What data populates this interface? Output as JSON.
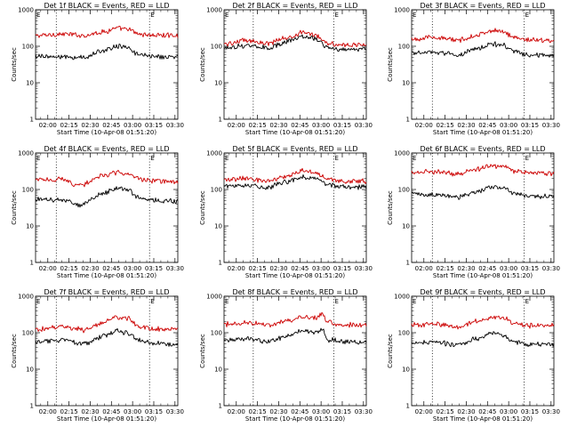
{
  "chart_data": [
    {
      "type": "line",
      "title": "Det 1f BLACK = Events, RED = LLD",
      "xlabel": "Start Time (10-Apr-08 01:51:20)",
      "ylabel": "Counts/sec",
      "x_ticks": [
        "02:00",
        "02:15",
        "02:30",
        "02:45",
        "03:00",
        "03:15",
        "03:30"
      ],
      "xlim": [
        "01:51:20",
        "03:32:00"
      ],
      "y_scale": "log",
      "ylim": [
        1,
        1000
      ],
      "y_ticks": [
        "1",
        "10",
        "100",
        "1000"
      ],
      "markers": [
        "02:06",
        "03:12"
      ],
      "flag_label": "E",
      "series": [
        {
          "color": "#cc0000",
          "x": [
            "01:51",
            "02:10",
            "02:25",
            "02:40",
            "02:48",
            "02:56",
            "03:05",
            "03:15",
            "03:30"
          ],
          "values": [
            195,
            215,
            200,
            250,
            310,
            290,
            215,
            200,
            200
          ]
        },
        {
          "color": "#000000",
          "x": [
            "01:51",
            "02:10",
            "02:25",
            "02:40",
            "02:48",
            "02:56",
            "03:05",
            "03:15",
            "03:30"
          ],
          "values": [
            55,
            50,
            50,
            75,
            100,
            95,
            57,
            52,
            50
          ]
        }
      ]
    },
    {
      "type": "line",
      "title": "Det 2f BLACK = Events, RED = LLD",
      "xlabel": "Start Time (10-Apr-08 01:51:20)",
      "ylabel": "Counts/sec",
      "x_ticks": [
        "02:00",
        "02:15",
        "02:30",
        "02:45",
        "03:00",
        "03:15",
        "03:30"
      ],
      "xlim": [
        "01:51:20",
        "03:32:00"
      ],
      "y_scale": "log",
      "ylim": [
        1,
        1000
      ],
      "y_ticks": [
        "1",
        "10",
        "100",
        "1000"
      ],
      "markers": [
        "02:12",
        "03:09"
      ],
      "flag_label": "E",
      "series": [
        {
          "color": "#cc0000",
          "x": [
            "01:51",
            "02:07",
            "02:22",
            "02:37",
            "02:47",
            "02:55",
            "03:05",
            "03:15",
            "03:30"
          ],
          "values": [
            115,
            145,
            120,
            175,
            235,
            215,
            125,
            105,
            110
          ]
        },
        {
          "color": "#000000",
          "x": [
            "01:51",
            "02:07",
            "02:22",
            "02:37",
            "02:47",
            "02:55",
            "03:05",
            "03:15",
            "03:30"
          ],
          "values": [
            90,
            105,
            90,
            135,
            180,
            165,
            95,
            82,
            85
          ]
        }
      ]
    },
    {
      "type": "line",
      "title": "Det 3f BLACK = Events, RED = LLD",
      "xlabel": "Start Time (10-Apr-08 01:51:20)",
      "ylabel": "Counts/sec",
      "x_ticks": [
        "02:00",
        "02:15",
        "02:30",
        "02:45",
        "03:00",
        "03:15",
        "03:30"
      ],
      "xlim": [
        "01:51:20",
        "03:32:00"
      ],
      "y_scale": "log",
      "ylim": [
        1,
        1000
      ],
      "y_ticks": [
        "1",
        "10",
        "100",
        "1000"
      ],
      "markers": [
        "02:06",
        "03:11"
      ],
      "flag_label": "E",
      "series": [
        {
          "color": "#cc0000",
          "x": [
            "01:51",
            "02:08",
            "02:24",
            "02:38",
            "02:48",
            "02:56",
            "03:05",
            "03:15",
            "03:30"
          ],
          "values": [
            160,
            175,
            145,
            205,
            265,
            245,
            175,
            150,
            145
          ]
        },
        {
          "color": "#000000",
          "x": [
            "01:51",
            "02:08",
            "02:24",
            "02:38",
            "02:48",
            "02:56",
            "03:05",
            "03:15",
            "03:30"
          ],
          "values": [
            65,
            68,
            58,
            85,
            115,
            105,
            68,
            58,
            55
          ]
        }
      ]
    },
    {
      "type": "line",
      "title": "Det 4f BLACK = Events, RED = LLD",
      "xlabel": "Start Time (10-Apr-08 01:51:20)",
      "ylabel": "Counts/sec",
      "x_ticks": [
        "02:00",
        "02:15",
        "02:30",
        "02:45",
        "03:00",
        "03:15",
        "03:30"
      ],
      "xlim": [
        "01:51:20",
        "03:32:00"
      ],
      "y_scale": "log",
      "ylim": [
        1,
        1000
      ],
      "y_ticks": [
        "1",
        "10",
        "100",
        "1000"
      ],
      "markers": [
        "02:06",
        "03:12"
      ],
      "flag_label": "E",
      "series": [
        {
          "color": "#cc0000",
          "x": [
            "01:51",
            "02:10",
            "02:22",
            "02:40",
            "02:48",
            "02:56",
            "03:05",
            "03:15",
            "03:30"
          ],
          "values": [
            185,
            190,
            130,
            240,
            290,
            265,
            195,
            170,
            160
          ]
        },
        {
          "color": "#000000",
          "x": [
            "01:51",
            "02:10",
            "02:22",
            "02:40",
            "02:48",
            "02:56",
            "03:05",
            "03:15",
            "03:30"
          ],
          "values": [
            55,
            50,
            38,
            80,
            110,
            100,
            58,
            50,
            48
          ]
        }
      ]
    },
    {
      "type": "line",
      "title": "Det 5f BLACK = Events, RED = LLD",
      "xlabel": "Start Time (10-Apr-08 01:51:20)",
      "ylabel": "Counts/sec",
      "x_ticks": [
        "02:00",
        "02:15",
        "02:30",
        "02:45",
        "03:00",
        "03:15",
        "03:30"
      ],
      "xlim": [
        "01:51:20",
        "03:32:00"
      ],
      "y_scale": "log",
      "ylim": [
        1,
        1000
      ],
      "y_ticks": [
        "1",
        "10",
        "100",
        "1000"
      ],
      "markers": [
        "02:12",
        "03:09"
      ],
      "flag_label": "E",
      "series": [
        {
          "color": "#cc0000",
          "x": [
            "01:51",
            "02:07",
            "02:22",
            "02:37",
            "02:47",
            "02:55",
            "03:05",
            "03:15",
            "03:30"
          ],
          "values": [
            185,
            200,
            170,
            240,
            330,
            300,
            195,
            170,
            170
          ]
        },
        {
          "color": "#000000",
          "x": [
            "01:51",
            "02:07",
            "02:22",
            "02:37",
            "02:47",
            "02:55",
            "03:05",
            "03:15",
            "03:30"
          ],
          "values": [
            125,
            135,
            115,
            165,
            225,
            205,
            135,
            115,
            115
          ]
        }
      ]
    },
    {
      "type": "line",
      "title": "Det 6f BLACK = Events, RED = LLD",
      "xlabel": "Start Time (10-Apr-08 01:51:20)",
      "ylabel": "Counts/sec",
      "x_ticks": [
        "02:00",
        "02:15",
        "02:30",
        "02:45",
        "03:00",
        "03:15",
        "03:30"
      ],
      "xlim": [
        "01:51:20",
        "03:32:00"
      ],
      "y_scale": "log",
      "ylim": [
        1,
        1000
      ],
      "y_ticks": [
        "1",
        "10",
        "100",
        "1000"
      ],
      "markers": [
        "02:06",
        "03:11"
      ],
      "flag_label": "E",
      "series": [
        {
          "color": "#cc0000",
          "x": [
            "01:51",
            "02:08",
            "02:24",
            "02:38",
            "02:48",
            "02:56",
            "03:05",
            "03:15",
            "03:30"
          ],
          "values": [
            300,
            310,
            265,
            360,
            450,
            420,
            320,
            280,
            280
          ]
        },
        {
          "color": "#000000",
          "x": [
            "01:51",
            "02:08",
            "02:24",
            "02:38",
            "02:48",
            "02:56",
            "03:05",
            "03:15",
            "03:30"
          ],
          "values": [
            75,
            72,
            62,
            90,
            120,
            110,
            75,
            65,
            65
          ]
        }
      ]
    },
    {
      "type": "line",
      "title": "Det 7f BLACK = Events, RED = LLD",
      "xlabel": "Start Time (10-Apr-08 01:51:20)",
      "ylabel": "Counts/sec",
      "x_ticks": [
        "02:00",
        "02:15",
        "02:30",
        "02:45",
        "03:00",
        "03:15",
        "03:30"
      ],
      "xlim": [
        "01:51:20",
        "03:32:00"
      ],
      "y_scale": "log",
      "ylim": [
        1,
        1000
      ],
      "y_ticks": [
        "1",
        "10",
        "100",
        "1000"
      ],
      "markers": [
        "02:06",
        "03:12"
      ],
      "flag_label": "E",
      "series": [
        {
          "color": "#cc0000",
          "x": [
            "01:51",
            "02:10",
            "02:25",
            "02:40",
            "02:48",
            "02:56",
            "03:05",
            "03:15",
            "03:30"
          ],
          "values": [
            125,
            150,
            120,
            190,
            270,
            245,
            150,
            125,
            120
          ]
        },
        {
          "color": "#000000",
          "x": [
            "01:51",
            "02:10",
            "02:25",
            "02:40",
            "02:48",
            "02:56",
            "03:05",
            "03:15",
            "03:30"
          ],
          "values": [
            58,
            62,
            50,
            80,
            110,
            100,
            60,
            50,
            48
          ]
        }
      ]
    },
    {
      "type": "line",
      "title": "Det 8f BLACK = Events, RED = LLD",
      "xlabel": "Start Time (10-Apr-08 01:51:20)",
      "ylabel": "Counts/sec",
      "x_ticks": [
        "02:00",
        "02:15",
        "02:30",
        "02:45",
        "03:00",
        "03:15",
        "03:30"
      ],
      "xlim": [
        "01:51:20",
        "03:32:00"
      ],
      "y_scale": "log",
      "ylim": [
        1,
        1000
      ],
      "y_ticks": [
        "1",
        "10",
        "100",
        "1000"
      ],
      "markers": [
        "02:12",
        "03:09"
      ],
      "flag_label": "E",
      "series": [
        {
          "color": "#cc0000",
          "x": [
            "01:51",
            "02:07",
            "02:22",
            "02:37",
            "02:47",
            "02:55",
            "03:01",
            "03:05",
            "03:15",
            "03:30"
          ],
          "values": [
            170,
            195,
            160,
            210,
            280,
            255,
            320,
            190,
            165,
            165
          ]
        },
        {
          "color": "#000000",
          "x": [
            "01:51",
            "02:07",
            "02:22",
            "02:37",
            "02:47",
            "02:55",
            "03:01",
            "03:05",
            "03:15",
            "03:30"
          ],
          "values": [
            62,
            70,
            58,
            80,
            115,
            100,
            125,
            65,
            58,
            55
          ]
        }
      ]
    },
    {
      "type": "line",
      "title": "Det 9f BLACK = Events, RED = LLD",
      "xlabel": "Start Time (10-Apr-08 01:51:20)",
      "ylabel": "Counts/sec",
      "x_ticks": [
        "02:00",
        "02:15",
        "02:30",
        "02:45",
        "03:00",
        "03:15",
        "03:30"
      ],
      "xlim": [
        "01:51:20",
        "03:32:00"
      ],
      "y_scale": "log",
      "ylim": [
        1,
        1000
      ],
      "y_ticks": [
        "1",
        "10",
        "100",
        "1000"
      ],
      "markers": [
        "02:06",
        "03:11"
      ],
      "flag_label": "E",
      "series": [
        {
          "color": "#cc0000",
          "x": [
            "01:51",
            "02:08",
            "02:24",
            "02:38",
            "02:48",
            "02:56",
            "03:05",
            "03:15",
            "03:30"
          ],
          "values": [
            160,
            175,
            145,
            210,
            270,
            250,
            175,
            155,
            160
          ]
        },
        {
          "color": "#000000",
          "x": [
            "01:51",
            "02:08",
            "02:24",
            "02:38",
            "02:48",
            "02:56",
            "03:05",
            "03:15",
            "03:30"
          ],
          "values": [
            50,
            55,
            46,
            68,
            95,
            85,
            55,
            47,
            50
          ]
        }
      ]
    }
  ]
}
